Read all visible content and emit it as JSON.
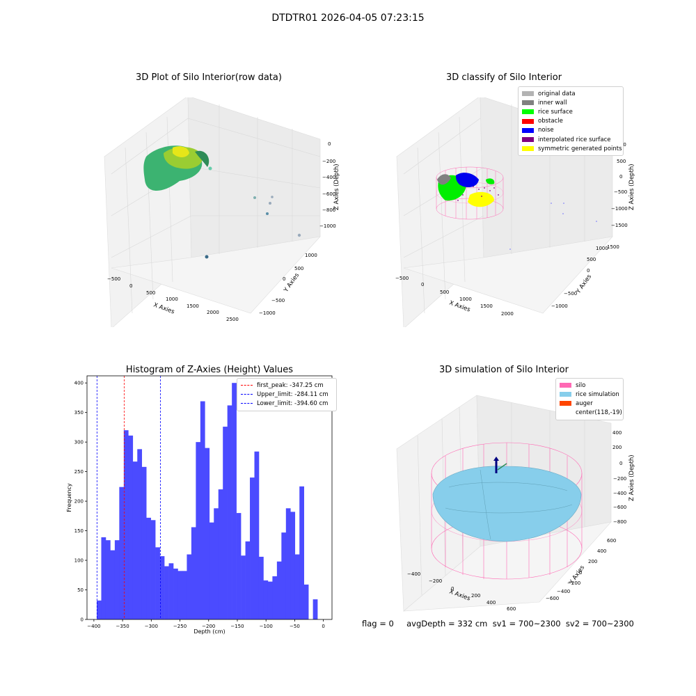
{
  "suptitle": "DTDTR01 2026-04-05 07:23:15",
  "panels": {
    "raw": {
      "title": "3D Plot of Silo Interior(row data)",
      "xlabel": "X Axies",
      "ylabel": "Y Axies",
      "zlabel": "Z Axies (Depth)",
      "xticks": [
        "−500",
        "0",
        "500",
        "1000",
        "1500",
        "2000",
        "2500"
      ],
      "yticks": [
        "−1000",
        "−500",
        "0",
        "500",
        "1000"
      ],
      "zticks": [
        "0",
        "−200",
        "−400",
        "−600",
        "−800",
        "−1000"
      ]
    },
    "classify": {
      "title": "3D classify of Silo Interior",
      "xlabel": "X Axies",
      "ylabel": "Y Axies",
      "zlabel": "Z Axies (Depth)",
      "xticks": [
        "−500",
        "0",
        "500",
        "1000",
        "1500",
        "2000"
      ],
      "yticks": [
        "−1000",
        "−500",
        "0",
        "500",
        "1000",
        "1500"
      ],
      "zticks": [
        "1000",
        "500",
        "0",
        "−500",
        "−1000",
        "−1500"
      ],
      "legend": [
        {
          "label": "original data",
          "color": "#b3b3b3"
        },
        {
          "label": "inner wall",
          "color": "#808080"
        },
        {
          "label": "rice surface",
          "color": "#00ff00"
        },
        {
          "label": "obstacle",
          "color": "#ff0000"
        },
        {
          "label": "noise",
          "color": "#0000ff"
        },
        {
          "label": "interpolated rice surface",
          "color": "#800080"
        },
        {
          "label": "symmetric generated points",
          "color": "#ffff00"
        }
      ]
    },
    "simulation": {
      "title": "3D simulation of Silo Interior",
      "xlabel": "X Axies",
      "ylabel": "Y Axies",
      "zlabel": "Z Axies (Depth)",
      "xticks": [
        "−400",
        "−200",
        "0",
        "200",
        "400",
        "600"
      ],
      "yticks": [
        "−600",
        "−400",
        "−200",
        "0",
        "200",
        "400",
        "600"
      ],
      "zticks": [
        "400",
        "200",
        "0",
        "−200",
        "−400",
        "−600",
        "−800"
      ],
      "legend": [
        {
          "label": "silo",
          "color": "#ff69b4"
        },
        {
          "label": "rice simulation",
          "color": "#87ceeb"
        },
        {
          "label": "auger",
          "color": "#ff4500"
        },
        {
          "label": "center(118,-19)",
          "color": ""
        }
      ]
    }
  },
  "chart_data": {
    "type": "bar",
    "title": "Histogram of Z-Axies (Height) Values",
    "xlabel": "Depth (cm)",
    "ylabel": "Frequency",
    "xlim": [
      -412,
      15
    ],
    "ylim": [
      0,
      412
    ],
    "xticks": [
      -400,
      -350,
      -300,
      -250,
      -200,
      -150,
      -100,
      -50,
      0
    ],
    "yticks": [
      0,
      50,
      100,
      150,
      200,
      250,
      300,
      350,
      400
    ],
    "bin_start": -395,
    "bin_width": 7.85,
    "values": [
      32,
      139,
      134,
      117,
      134,
      224,
      320,
      311,
      267,
      288,
      258,
      172,
      168,
      122,
      107,
      90,
      95,
      86,
      82,
      82,
      110,
      156,
      300,
      369,
      290,
      164,
      188,
      220,
      326,
      362,
      400,
      180,
      108,
      132,
      240,
      284,
      106,
      66,
      64,
      73,
      98,
      147,
      188,
      182,
      110,
      225,
      59,
      0,
      34
    ],
    "bar_color": "#4b4bff",
    "vlines": [
      {
        "x": -347.25,
        "label": "first_peak: -347.25 cm",
        "color": "#ff0000"
      },
      {
        "x": -284.11,
        "label": "Upper_limit: -284.11 cm",
        "color": "#0000ff"
      },
      {
        "x": -394.6,
        "label": "Lower_limit: -394.60 cm",
        "color": "#0000ff"
      }
    ]
  },
  "footer": "flag = 0     avgDepth = 332 cm  sv1 = 700~2300  sv2 = 700~2300"
}
